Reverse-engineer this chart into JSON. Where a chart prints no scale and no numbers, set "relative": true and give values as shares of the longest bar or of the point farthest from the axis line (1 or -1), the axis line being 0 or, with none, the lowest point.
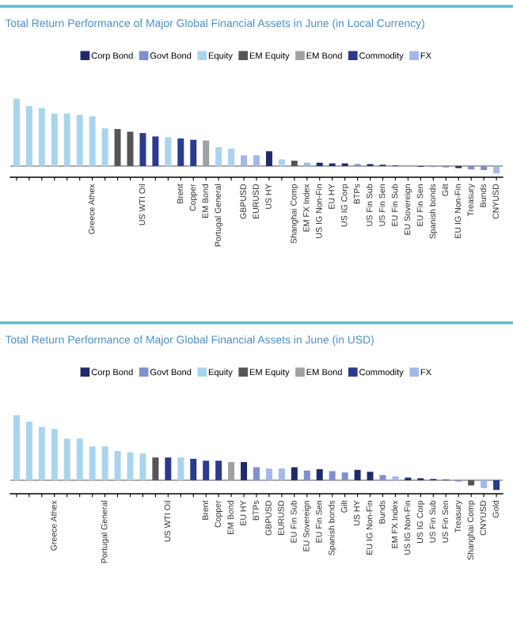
{
  "chart_data": [
    {
      "type": "bar",
      "relative": true,
      "title": "Total Return Performance of Major Global Financial Assets in June (in Local Currency)",
      "legend": "top",
      "grid": false,
      "categories": [
        null,
        null,
        null,
        null,
        null,
        null,
        "Greece Athex",
        null,
        null,
        null,
        "US WTI Oil",
        null,
        null,
        "Brent",
        "Copper",
        "EM Bond",
        "Portugal General",
        null,
        "GBPUSD",
        "EURUSD",
        "US HY",
        null,
        "Shanghai Comp",
        "EM FX Index",
        "US IG Non-Fin",
        "EU HY",
        "US IG Corp",
        "BTPs",
        "US Fin Sub",
        "US Fin Sen",
        "EU Fin Sub",
        "EU Sovereign",
        "EU Fin Sen",
        "Spanish bonds",
        "Gilt",
        "EU IG Non-Fin",
        "Treasury",
        "Bunds",
        "CNYUSD"
      ],
      "series": [
        {
          "name": "Corp Bond",
          "color": "#1f2a6b",
          "values": [
            null,
            null,
            null,
            null,
            null,
            null,
            null,
            null,
            null,
            null,
            null,
            null,
            null,
            null,
            null,
            null,
            null,
            null,
            null,
            null,
            0.22,
            null,
            null,
            null,
            0.05,
            0.04,
            0.04,
            null,
            0.03,
            0.02,
            0.01,
            null,
            -0.01,
            null,
            null,
            -0.03,
            null,
            null,
            null
          ]
        },
        {
          "name": "Govt Bond",
          "color": "#7f8fcf",
          "values": [
            null,
            null,
            null,
            null,
            null,
            null,
            null,
            null,
            null,
            null,
            null,
            null,
            null,
            null,
            null,
            null,
            null,
            null,
            null,
            null,
            null,
            null,
            null,
            null,
            null,
            null,
            null,
            0.03,
            null,
            null,
            null,
            0.005,
            null,
            -0.01,
            -0.02,
            null,
            -0.05,
            -0.06,
            null
          ]
        },
        {
          "name": "Equity",
          "color": "#a8d4ee",
          "values": [
            1,
            0.89,
            0.86,
            0.78,
            0.78,
            0.76,
            0.74,
            0.56,
            null,
            null,
            null,
            null,
            0.43,
            null,
            null,
            null,
            0.28,
            0.26,
            null,
            null,
            null,
            0.1,
            null,
            null,
            null,
            null,
            null,
            null,
            null,
            null,
            null,
            null,
            null,
            null,
            null,
            null,
            null,
            null,
            null
          ]
        },
        {
          "name": "EM Equity",
          "color": "#555555",
          "values": [
            null,
            null,
            null,
            null,
            null,
            null,
            null,
            null,
            0.55,
            0.51,
            null,
            null,
            null,
            null,
            null,
            null,
            null,
            null,
            null,
            null,
            null,
            null,
            0.08,
            null,
            null,
            null,
            null,
            null,
            null,
            null,
            null,
            null,
            null,
            null,
            null,
            null,
            null,
            null,
            null
          ]
        },
        {
          "name": "EM Bond",
          "color": "#a0a0a0",
          "values": [
            null,
            null,
            null,
            null,
            null,
            null,
            null,
            null,
            null,
            null,
            null,
            null,
            null,
            null,
            null,
            0.38,
            null,
            null,
            null,
            null,
            null,
            null,
            null,
            null,
            null,
            null,
            null,
            null,
            null,
            null,
            null,
            null,
            null,
            null,
            null,
            null,
            null,
            null,
            null
          ]
        },
        {
          "name": "Commodity",
          "color": "#2b3a8c",
          "values": [
            null,
            null,
            null,
            null,
            null,
            null,
            null,
            null,
            null,
            null,
            0.49,
            0.44,
            null,
            0.41,
            0.39,
            null,
            null,
            null,
            null,
            null,
            null,
            null,
            null,
            null,
            null,
            null,
            null,
            null,
            null,
            null,
            null,
            null,
            null,
            null,
            null,
            null,
            null,
            null,
            null
          ]
        },
        {
          "name": "FX",
          "color": "#a3b8e8",
          "values": [
            null,
            null,
            null,
            null,
            null,
            null,
            null,
            null,
            null,
            null,
            null,
            null,
            null,
            null,
            null,
            null,
            null,
            null,
            0.16,
            0.16,
            null,
            null,
            null,
            0.05,
            null,
            null,
            null,
            null,
            null,
            null,
            null,
            null,
            null,
            null,
            null,
            null,
            null,
            null,
            -0.11
          ]
        }
      ]
    },
    {
      "type": "bar",
      "relative": true,
      "title": "Total Return Performance of Major Global Financial Assets in June (in USD)",
      "legend": "top",
      "grid": false,
      "categories": [
        null,
        null,
        null,
        "Greece Athex",
        null,
        null,
        null,
        "Portugal General",
        null,
        null,
        null,
        null,
        "US WTI Oil",
        null,
        null,
        "Brent",
        "Copper",
        "EM Bond",
        "EU HY",
        "BTPs",
        "GBPUSD",
        "EURUSD",
        "EU Fin Sub",
        "EU Sovereign",
        "EU Fin Sen",
        "Spanish bonds",
        "Gilt",
        "US HY",
        "EU IG Non-Fin",
        "Bunds",
        "EM FX Index",
        "US IG Non-Fin",
        "US IG Corp",
        "US Fin Sub",
        "US Fin Sen",
        "Treasury",
        "Shanghai Comp",
        "CNYUSD",
        "Gold"
      ],
      "series": [
        {
          "name": "Corp Bond",
          "color": "#1f2a6b",
          "values": [
            null,
            null,
            null,
            null,
            null,
            null,
            null,
            null,
            null,
            null,
            null,
            null,
            null,
            null,
            null,
            null,
            null,
            null,
            0.28,
            null,
            null,
            null,
            0.2,
            null,
            0.17,
            null,
            null,
            0.16,
            0.13,
            null,
            null,
            0.04,
            0.03,
            0.02,
            0.01,
            null,
            null,
            null,
            null
          ]
        },
        {
          "name": "Govt Bond",
          "color": "#7f8fcf",
          "values": [
            null,
            null,
            null,
            null,
            null,
            null,
            null,
            null,
            null,
            null,
            null,
            null,
            null,
            null,
            null,
            null,
            null,
            null,
            null,
            0.2,
            null,
            null,
            null,
            0.15,
            null,
            0.14,
            0.12,
            null,
            null,
            0.08,
            null,
            null,
            null,
            null,
            null,
            -0.02,
            null,
            null,
            null
          ]
        },
        {
          "name": "Equity",
          "color": "#a8d4ee",
          "values": [
            1,
            0.9,
            0.82,
            0.79,
            0.64,
            0.64,
            0.52,
            0.52,
            0.45,
            0.43,
            0.41,
            null,
            null,
            0.35,
            null,
            null,
            null,
            null,
            null,
            null,
            null,
            null,
            null,
            null,
            null,
            null,
            null,
            null,
            null,
            null,
            null,
            null,
            null,
            null,
            null,
            null,
            null,
            null,
            null
          ]
        },
        {
          "name": "EM Equity",
          "color": "#555555",
          "values": [
            null,
            null,
            null,
            null,
            null,
            null,
            null,
            null,
            null,
            null,
            null,
            0.35,
            null,
            null,
            null,
            null,
            null,
            null,
            null,
            null,
            null,
            null,
            null,
            null,
            null,
            null,
            null,
            null,
            null,
            null,
            null,
            null,
            null,
            null,
            null,
            null,
            -0.08,
            null,
            null
          ]
        },
        {
          "name": "EM Bond",
          "color": "#a0a0a0",
          "values": [
            null,
            null,
            null,
            null,
            null,
            null,
            null,
            null,
            null,
            null,
            null,
            null,
            null,
            null,
            null,
            null,
            null,
            0.28,
            null,
            null,
            null,
            null,
            null,
            null,
            null,
            null,
            null,
            null,
            null,
            null,
            null,
            null,
            null,
            null,
            null,
            null,
            null,
            null,
            null
          ]
        },
        {
          "name": "Commodity",
          "color": "#2b3a8c",
          "values": [
            null,
            null,
            null,
            null,
            null,
            null,
            null,
            null,
            null,
            null,
            null,
            null,
            0.35,
            null,
            0.33,
            0.3,
            0.3,
            null,
            null,
            null,
            null,
            null,
            null,
            null,
            null,
            null,
            null,
            null,
            null,
            null,
            null,
            null,
            null,
            null,
            null,
            null,
            null,
            null,
            -0.15
          ]
        },
        {
          "name": "FX",
          "color": "#a3b8e8",
          "values": [
            null,
            null,
            null,
            null,
            null,
            null,
            null,
            null,
            null,
            null,
            null,
            null,
            null,
            null,
            null,
            null,
            null,
            null,
            null,
            null,
            0.18,
            0.18,
            null,
            null,
            null,
            null,
            null,
            null,
            null,
            null,
            0.06,
            null,
            null,
            null,
            null,
            null,
            null,
            -0.12,
            null
          ]
        }
      ]
    }
  ]
}
